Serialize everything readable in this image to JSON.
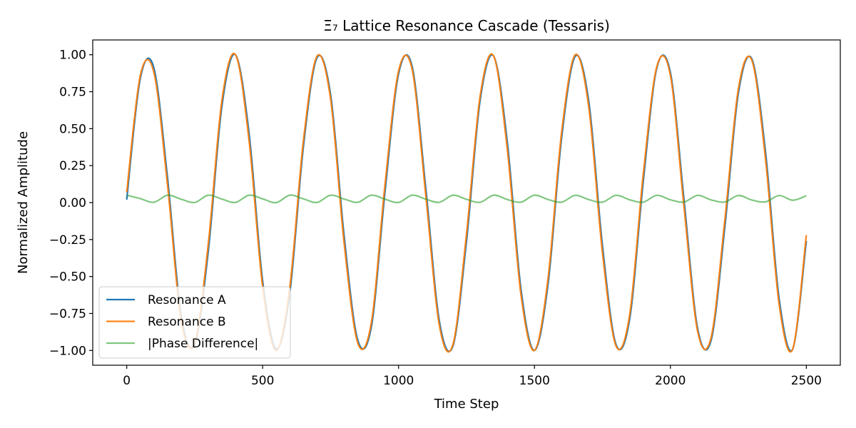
{
  "chart_data": {
    "type": "line",
    "title": "Ξ₇ Lattice Resonance Cascade (Tessaris)",
    "xlabel": "Time Step",
    "ylabel": "Normalized Amplitude",
    "xlim": [
      -125,
      2625
    ],
    "ylim": [
      -1.1,
      1.1
    ],
    "xticks": [
      0,
      500,
      1000,
      1500,
      2000,
      2500
    ],
    "xtick_labels": [
      "0",
      "500",
      "1000",
      "1500",
      "2000",
      "2500"
    ],
    "yticks": [
      -1.0,
      -0.75,
      -0.5,
      -0.25,
      0.0,
      0.25,
      0.5,
      0.75,
      1.0
    ],
    "ytick_labels": [
      "−1.00",
      "−0.75",
      "−0.50",
      "−0.25",
      "0.00",
      "0.25",
      "0.50",
      "0.75",
      "1.00"
    ],
    "grid": false,
    "legend": "lower-left",
    "series": [
      {
        "name": "Resonance A",
        "color": "#1f77b4",
        "x": [
          0,
          50,
          100,
          150,
          200,
          250,
          300,
          350,
          400,
          450,
          500,
          550,
          600,
          650,
          700,
          750,
          800,
          850,
          900,
          950,
          1000,
          1050,
          1100,
          1150,
          1200,
          1250,
          1300,
          1350,
          1400,
          1450,
          1500,
          1550,
          1600,
          1650,
          1700,
          1750,
          1800,
          1850,
          1900,
          1950,
          2000,
          2050,
          2100,
          2150,
          2200,
          2250,
          2300,
          2350,
          2400,
          2450,
          2500
        ],
        "y": [
          0.02,
          0.84,
          0.91,
          0.17,
          -0.76,
          -0.96,
          -0.33,
          0.65,
          1.0,
          0.47,
          -0.53,
          -0.99,
          -0.61,
          0.38,
          0.98,
          0.73,
          -0.23,
          -0.93,
          -0.84,
          0.07,
          0.87,
          0.92,
          0.1,
          -0.8,
          -0.97,
          -0.26,
          0.69,
          0.99,
          0.41,
          -0.58,
          -1.0,
          -0.55,
          0.44,
          0.99,
          0.68,
          -0.29,
          -0.96,
          -0.79,
          0.14,
          0.91,
          0.88,
          0.02,
          -0.85,
          -0.93,
          -0.17,
          0.74,
          0.97,
          0.34,
          -0.65,
          -0.99,
          -0.26
        ]
      },
      {
        "name": "Resonance B",
        "color": "#ff7f0e",
        "x": [
          0,
          50,
          100,
          150,
          200,
          250,
          300,
          350,
          400,
          450,
          500,
          550,
          600,
          650,
          700,
          750,
          800,
          850,
          900,
          950,
          1000,
          1050,
          1100,
          1150,
          1200,
          1250,
          1300,
          1350,
          1400,
          1450,
          1500,
          1550,
          1600,
          1650,
          1700,
          1750,
          1800,
          1850,
          1900,
          1950,
          2000,
          2050,
          2100,
          2150,
          2200,
          2250,
          2300,
          2350,
          2400,
          2450,
          2500
        ],
        "y": [
          0.07,
          0.86,
          0.88,
          0.12,
          -0.79,
          -0.95,
          -0.28,
          0.69,
          1.0,
          0.42,
          -0.57,
          -1.0,
          -0.57,
          0.42,
          0.99,
          0.7,
          -0.28,
          -0.95,
          -0.81,
          0.12,
          0.89,
          0.9,
          0.05,
          -0.83,
          -0.96,
          -0.21,
          0.72,
          0.99,
          0.36,
          -0.62,
          -1.0,
          -0.51,
          0.48,
          1.0,
          0.64,
          -0.34,
          -0.97,
          -0.76,
          0.19,
          0.92,
          0.86,
          -0.03,
          -0.87,
          -0.91,
          -0.12,
          0.77,
          0.96,
          0.29,
          -0.69,
          -0.99,
          -0.22
        ]
      },
      {
        "name": "|Phase Difference|",
        "color": "#2ca02c",
        "x": [
          0,
          50,
          100,
          150,
          200,
          250,
          300,
          350,
          400,
          450,
          500,
          550,
          600,
          650,
          700,
          750,
          800,
          850,
          900,
          950,
          1000,
          1050,
          1100,
          1150,
          1200,
          1250,
          1300,
          1350,
          1400,
          1450,
          1500,
          1550,
          1600,
          1650,
          1700,
          1750,
          1800,
          1850,
          1900,
          1950,
          2000,
          2050,
          2100,
          2150,
          2200,
          2250,
          2300,
          2350,
          2400,
          2450,
          2500
        ],
        "y": [
          0.05,
          0.027,
          0.002,
          0.05,
          0.023,
          0.001,
          0.05,
          0.024,
          0.001,
          0.05,
          0.025,
          0.0,
          0.05,
          0.025,
          0.001,
          0.05,
          0.024,
          0.002,
          0.05,
          0.023,
          0.001,
          0.05,
          0.023,
          0.002,
          0.05,
          0.022,
          0.002,
          0.05,
          0.021,
          0.003,
          0.05,
          0.021,
          0.003,
          0.049,
          0.02,
          0.003,
          0.049,
          0.019,
          0.003,
          0.049,
          0.019,
          0.004,
          0.049,
          0.018,
          0.004,
          0.048,
          0.017,
          0.005,
          0.048,
          0.016,
          0.046
        ]
      }
    ]
  }
}
